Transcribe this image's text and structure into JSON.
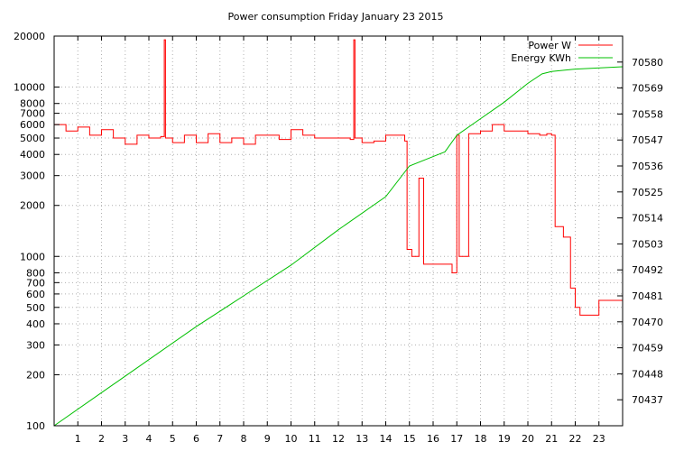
{
  "chart_data": {
    "type": "line",
    "title": "Power consumption Friday January 23 2015",
    "x_ticks": [
      "1",
      "2",
      "3",
      "4",
      "5",
      "6",
      "7",
      "8",
      "9",
      "10",
      "11",
      "12",
      "13",
      "14",
      "15",
      "16",
      "17",
      "18",
      "19",
      "20",
      "21",
      "22",
      "23"
    ],
    "xlim": [
      0,
      24
    ],
    "y_left": {
      "scale": "log",
      "ylim": [
        100,
        20000
      ],
      "ticks": [
        "100",
        "200",
        "300",
        "400",
        "500",
        "600",
        "700",
        "800",
        "1000",
        "2000",
        "3000",
        "4000",
        "5000",
        "6000",
        "7000",
        "8000",
        "10000",
        "20000"
      ]
    },
    "y_right": {
      "ylim": [
        70426,
        70591
      ],
      "ticks": [
        "70437",
        "70448",
        "70459",
        "70470",
        "70481",
        "70492",
        "70503",
        "70514",
        "70525",
        "70536",
        "70547",
        "70558",
        "70569",
        "70580"
      ]
    },
    "grid": true,
    "legend_position": "top-right",
    "series": [
      {
        "name": "Power W",
        "color": "#ff0000",
        "axis": "left",
        "x": [
          0,
          0.5,
          1.0,
          1.5,
          2.0,
          2.5,
          3.0,
          3.5,
          4.0,
          4.5,
          4.65,
          4.7,
          5.0,
          5.5,
          6.0,
          6.5,
          7.0,
          7.5,
          8.0,
          8.5,
          9.0,
          9.5,
          10.0,
          10.5,
          11.0,
          11.5,
          12.0,
          12.5,
          12.65,
          12.7,
          13.0,
          13.5,
          14.0,
          14.5,
          14.8,
          14.9,
          15.1,
          15.4,
          15.6,
          16.0,
          16.5,
          16.8,
          17.0,
          17.1,
          17.5,
          18.0,
          18.5,
          19.0,
          19.5,
          20.0,
          20.5,
          20.8,
          21.0,
          21.15,
          21.5,
          21.8,
          22.0,
          22.2,
          22.6,
          23.0,
          24.0
        ],
        "values": [
          6000,
          5500,
          5800,
          5200,
          5600,
          5000,
          4600,
          5200,
          5000,
          5100,
          19000,
          5000,
          4700,
          5200,
          4700,
          5300,
          4700,
          5000,
          4600,
          5200,
          5200,
          4900,
          5600,
          5200,
          5000,
          5000,
          5000,
          4900,
          19000,
          5000,
          4700,
          4800,
          5200,
          5200,
          4800,
          1100,
          1000,
          2900,
          900,
          900,
          900,
          800,
          5200,
          1000,
          5300,
          5500,
          6000,
          5500,
          5500,
          5300,
          5200,
          5300,
          5200,
          1500,
          1300,
          650,
          500,
          450,
          450,
          550,
          520
        ]
      },
      {
        "name": "Energy KWh",
        "color": "#00c000",
        "axis": "right",
        "x": [
          0,
          2,
          4,
          6,
          8,
          10,
          12,
          14,
          15,
          16,
          16.5,
          17,
          18,
          19,
          20,
          20.6,
          21,
          22,
          24
        ],
        "values": [
          70426,
          70440,
          70454,
          70468,
          70481,
          70494,
          70509,
          70523,
          70536,
          70540,
          70542,
          70549,
          70556,
          70563,
          70571,
          70575,
          70576,
          70577,
          70578
        ]
      }
    ]
  }
}
